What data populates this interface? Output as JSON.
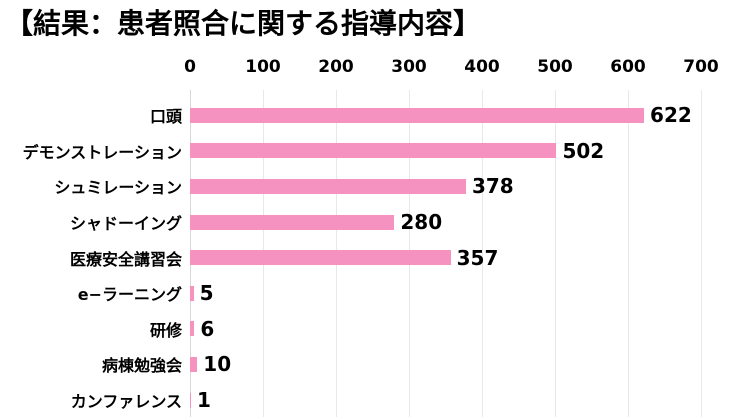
{
  "title": "【結果：患者照合に関する指導内容】",
  "colors": {
    "bar": "#f592bf",
    "gridline": "#e8e8e8",
    "zero_gridline": "#d8d8d8",
    "text": "#000000",
    "background": "#ffffff"
  },
  "chart_data": {
    "type": "bar",
    "orientation": "horizontal",
    "title": "【結果：患者照合に関する指導内容】",
    "categories": [
      "口頭",
      "デモンストレーション",
      "シュミレーション",
      "シャドーイング",
      "医療安全講習会",
      "e−ラーニング",
      "研修",
      "病棟勉強会",
      "カンファレンス"
    ],
    "values": [
      622,
      502,
      378,
      280,
      357,
      5,
      6,
      10,
      1
    ],
    "data_labels": [
      "622",
      "502",
      "378",
      "280",
      "357",
      "5",
      "6",
      "10",
      "1"
    ],
    "xlabel": "",
    "ylabel": "",
    "xlim": [
      0,
      700
    ],
    "x_ticks": [
      0,
      100,
      200,
      300,
      400,
      500,
      600,
      700
    ],
    "grid": "vertical",
    "axis_position": "top",
    "legend": "none"
  }
}
